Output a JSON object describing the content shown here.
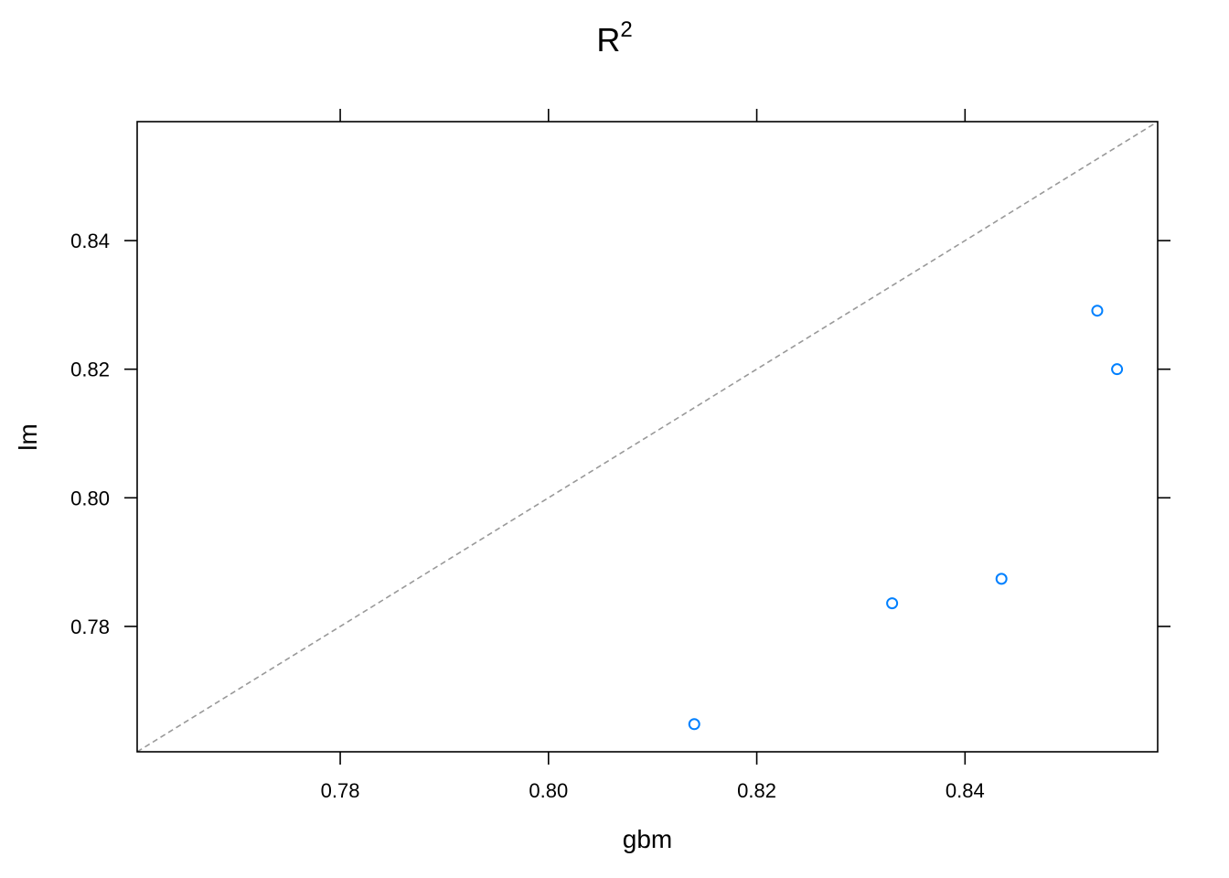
{
  "chart_data": {
    "type": "scatter",
    "title": "R",
    "title_superscript": "2",
    "xlabel": "gbm",
    "ylabel": "lm",
    "xlim": [
      0.7605,
      0.8585
    ],
    "ylim": [
      0.7605,
      0.8585
    ],
    "x_ticks": [
      0.78,
      0.8,
      0.82,
      0.84
    ],
    "x_tick_labels": [
      "0.78",
      "0.80",
      "0.82",
      "0.84"
    ],
    "y_ticks": [
      0.78,
      0.8,
      0.82,
      0.84
    ],
    "y_tick_labels": [
      "0.78",
      "0.80",
      "0.82",
      "0.84"
    ],
    "grid": false,
    "reference_line": "y = x, dashed gray",
    "point_color": "#0080ff",
    "points": [
      {
        "x": 0.814,
        "y": 0.7648
      },
      {
        "x": 0.833,
        "y": 0.7836
      },
      {
        "x": 0.8435,
        "y": 0.7874
      },
      {
        "x": 0.8527,
        "y": 0.8291
      },
      {
        "x": 0.8546,
        "y": 0.82
      }
    ]
  }
}
